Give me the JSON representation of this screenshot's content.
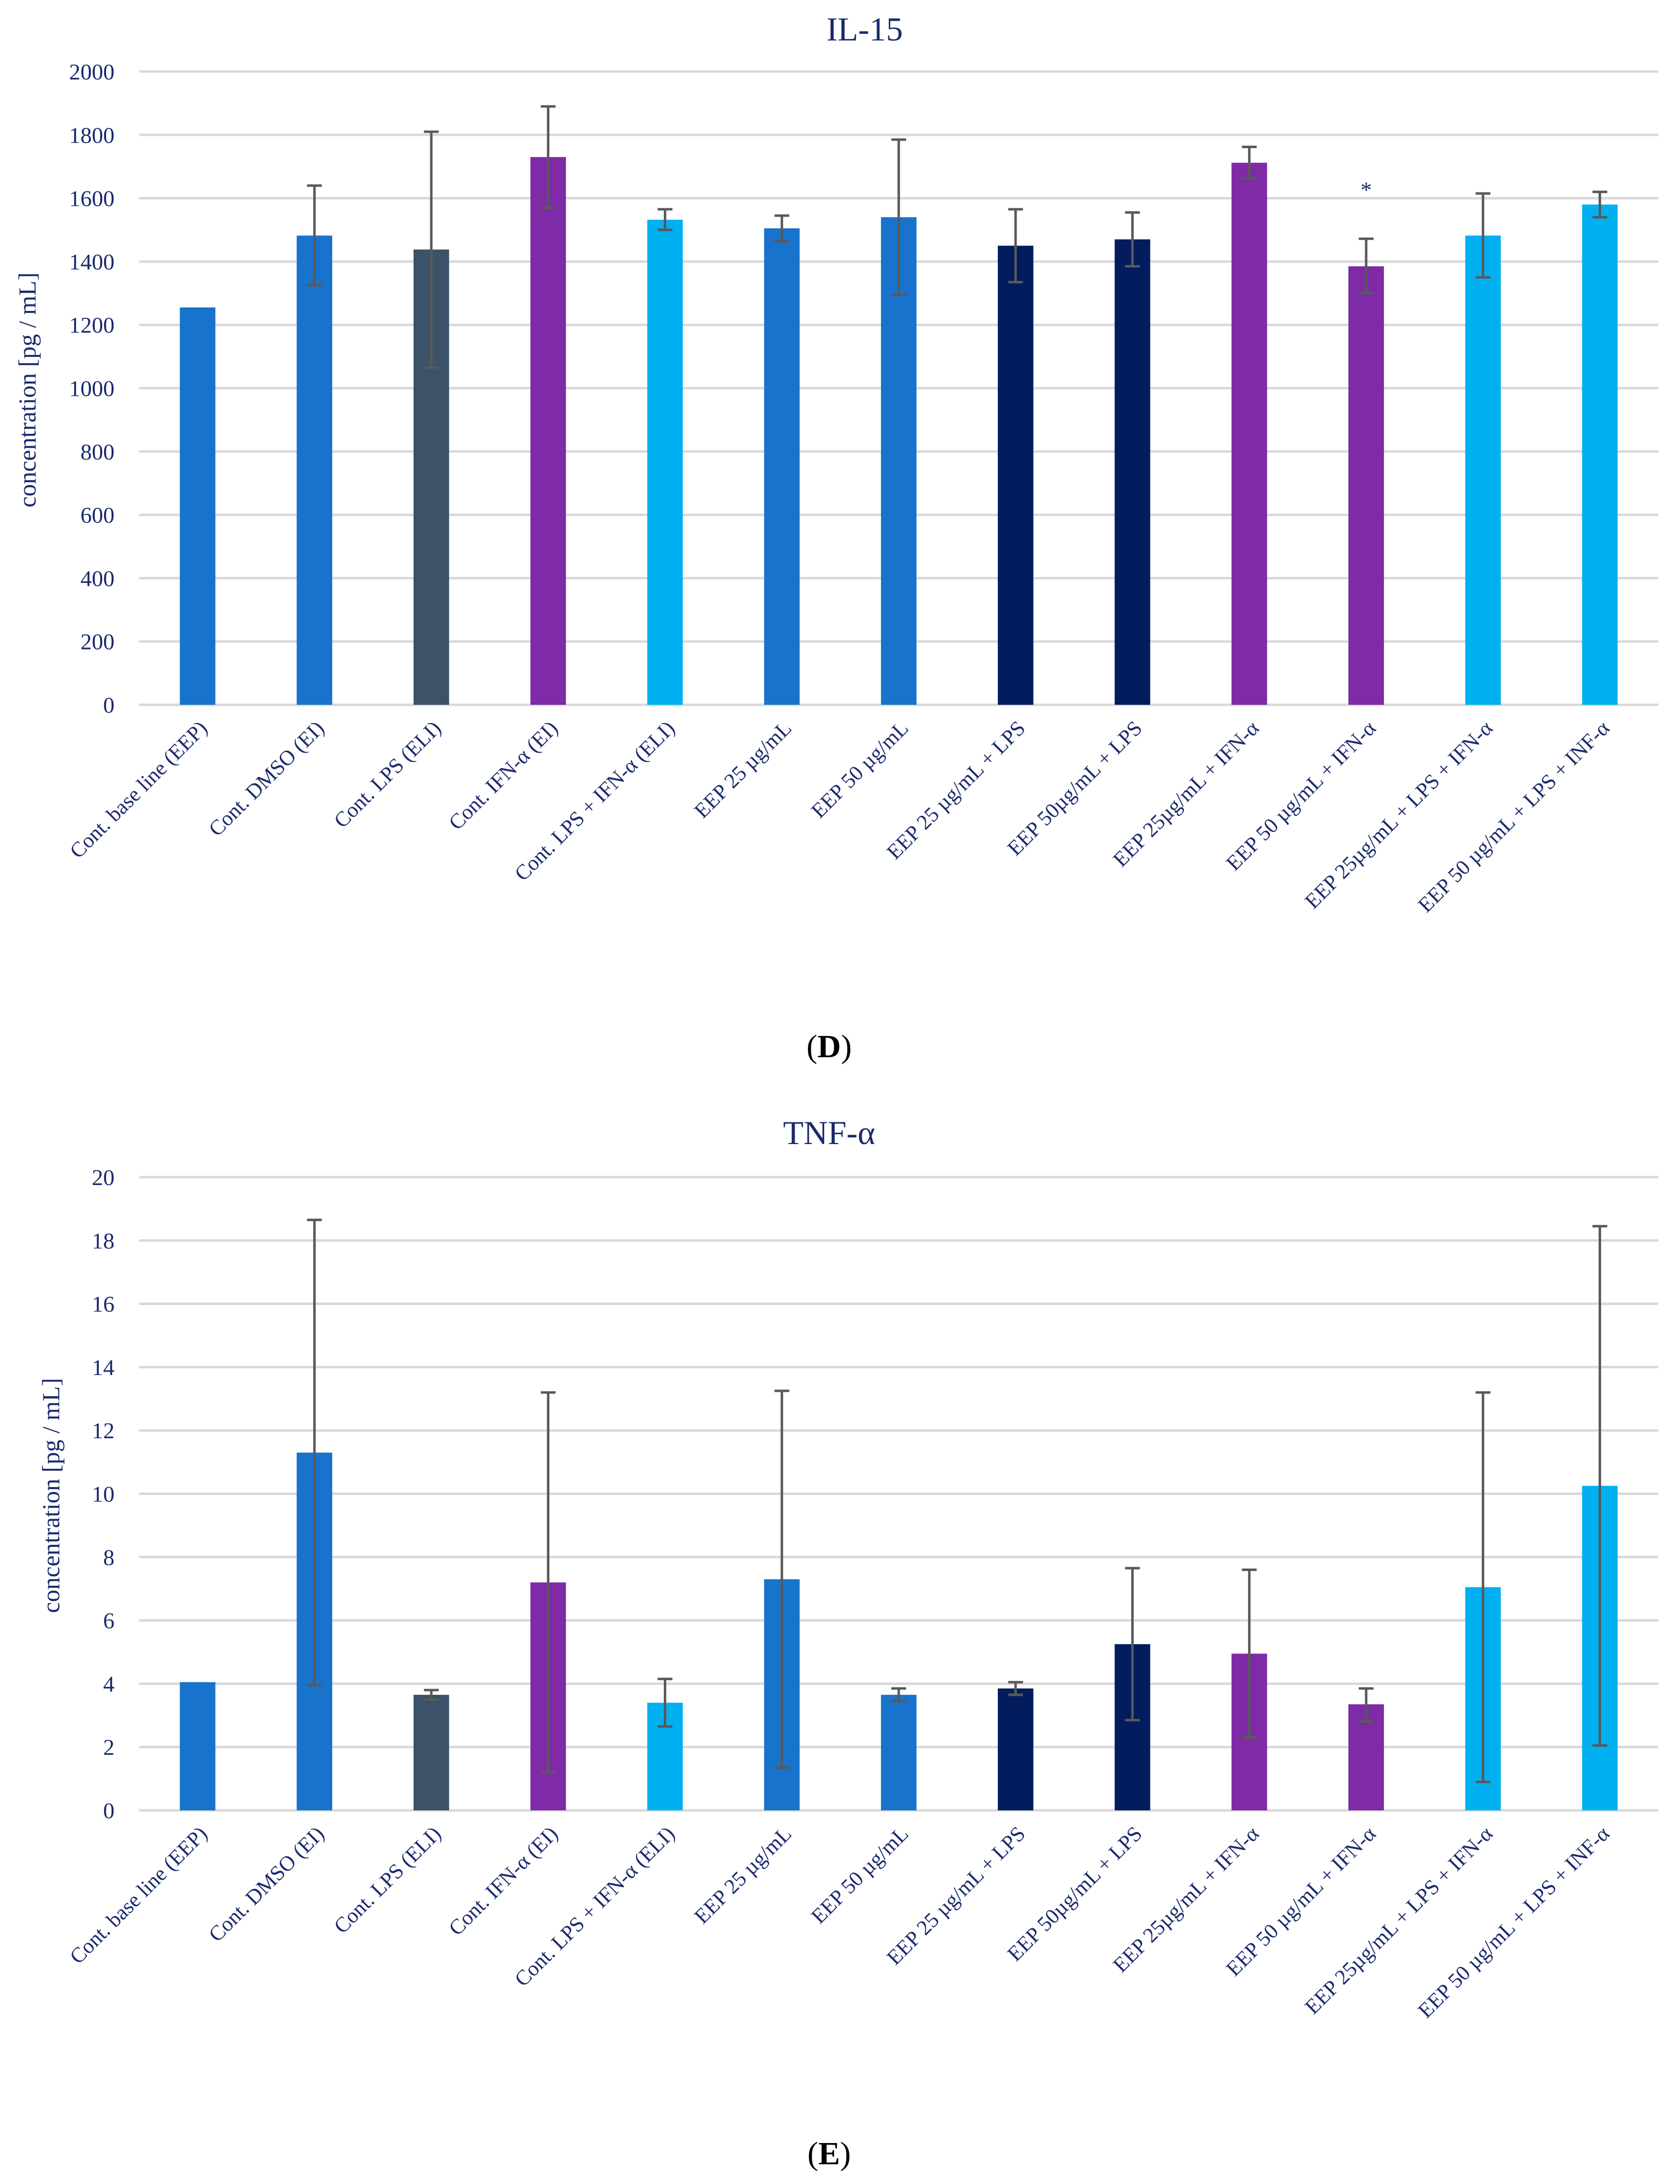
{
  "chart_data": [
    {
      "type": "bar",
      "title": "IL-15",
      "ylabel": "concentration [pg / mL]",
      "xlabel": "",
      "ylim": [
        0,
        2000
      ],
      "yticks": [
        0,
        200,
        400,
        600,
        800,
        1000,
        1200,
        1400,
        1600,
        1800,
        2000
      ],
      "grid": true,
      "panel_label": {
        "open": "(",
        "letter": "D",
        "close": ")"
      },
      "categories": [
        "Cont. base line (EEP)",
        "Cont. DMSO (EI)",
        "Cont. LPS (ELI)",
        "Cont. IFN-α (EI)",
        "Cont. LPS + IFN-α (ELI)",
        "EEP 25 µg/mL",
        "EEP 50 µg/mL",
        "EEP 25 µg/mL + LPS",
        "EEP 50µg/mL + LPS",
        "EEP 25µg/mL + IFN-α",
        "EEP 50 µg/mL + IFN-α",
        "EEP 25µg/mL + LPS + IFN-α",
        "EEP 50 µg/mL + LPS + INF-α"
      ],
      "values": [
        1255,
        1482,
        1438,
        1730,
        1532,
        1505,
        1540,
        1450,
        1470,
        1712,
        1385,
        1482,
        1580
      ],
      "error_low": [
        null,
        1325,
        1065,
        1570,
        1500,
        1465,
        1295,
        1335,
        1385,
        1662,
        1300,
        1350,
        1540
      ],
      "error_high": [
        null,
        1640,
        1810,
        1890,
        1565,
        1545,
        1785,
        1565,
        1555,
        1762,
        1472,
        1615,
        1620
      ],
      "colors": [
        "#1873cc",
        "#1873cc",
        "#3b5268",
        "#7f2aa6",
        "#00b0f0",
        "#1873cc",
        "#1873cc",
        "#021c5e",
        "#021c5e",
        "#7f2aa6",
        "#7f2aa6",
        "#00b0f0",
        "#00b0f0"
      ],
      "annotations": [
        {
          "text": "*",
          "category_index": 10,
          "y": 1640
        }
      ]
    },
    {
      "type": "bar",
      "title": "TNF-α",
      "ylabel": "concentration [pg / mL]",
      "xlabel": "",
      "ylim": [
        0,
        20
      ],
      "yticks": [
        0,
        2,
        4,
        6,
        8,
        10,
        12,
        14,
        16,
        18,
        20
      ],
      "grid": true,
      "panel_label": {
        "open": "(",
        "letter": "E",
        "close": ")"
      },
      "categories": [
        "Cont. base line (EEP)",
        "Cont. DMSO (EI)",
        "Cont. LPS (ELI)",
        "Cont. IFN-α (EI)",
        "Cont. LPS + IFN-α (ELI)",
        "EEP 25 µg/mL",
        "EEP 50 µg/mL",
        "EEP 25 µg/mL + LPS",
        "EEP 50µg/mL + LPS",
        "EEP 25µg/mL + IFN-α",
        "EEP 50 µg/mL + IFN-α",
        "EEP 25µg/mL + LPS + IFN-α",
        "EEP 50 µg/mL + LPS + INF-α"
      ],
      "values": [
        4.05,
        11.3,
        3.65,
        7.2,
        3.4,
        7.3,
        3.65,
        3.85,
        5.25,
        4.95,
        3.35,
        7.05,
        10.25
      ],
      "error_low": [
        null,
        3.95,
        3.5,
        1.2,
        2.65,
        1.35,
        3.45,
        3.65,
        2.85,
        2.3,
        2.8,
        0.9,
        2.05
      ],
      "error_high": [
        null,
        18.65,
        3.8,
        13.2,
        4.15,
        13.25,
        3.85,
        4.05,
        7.65,
        7.6,
        3.85,
        13.2,
        18.45
      ],
      "colors": [
        "#1873cc",
        "#1873cc",
        "#3b5268",
        "#7f2aa6",
        "#00b0f0",
        "#1873cc",
        "#1873cc",
        "#021c5e",
        "#021c5e",
        "#7f2aa6",
        "#7f2aa6",
        "#00b0f0",
        "#00b0f0"
      ],
      "annotations": []
    }
  ]
}
